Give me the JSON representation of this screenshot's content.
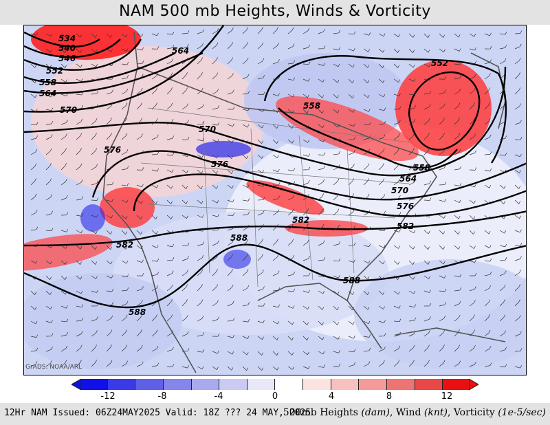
{
  "title": "NAM 500 mb Heights, Winds & Vorticity",
  "credit": "GrADS: NOAA/ARL",
  "colorbar": {
    "ticks": [
      "-12",
      "-8",
      "-4",
      "0",
      "4",
      "8",
      "12"
    ],
    "colors": [
      "#1010e8",
      "#3a3ae8",
      "#5f5fe8",
      "#8585ea",
      "#a9a9ee",
      "#cacaf3",
      "#e8e8fa",
      "#ffffff",
      "#fde2e2",
      "#f9c0c0",
      "#f49a9a",
      "#ee7373",
      "#e84848",
      "#e81010"
    ]
  },
  "footer": {
    "left": "12Hr NAM Issued: 06Z24MAY2025 Valid: 18Z ??? 24 MAY, 2025",
    "right_prefix": "500mb Heights",
    "right_unit1": "(dam)",
    "right_mid": ", Wind",
    "right_unit2": "(knt)",
    "right_mid2": ", Vorticity",
    "right_unit3": "(1e-5/sec)"
  },
  "contours": {
    "labels": [
      "534",
      "540",
      "546",
      "552",
      "558",
      "564",
      "564",
      "570",
      "570",
      "576",
      "576",
      "582",
      "582",
      "582",
      "588",
      "588",
      "588",
      "552",
      "558",
      "558",
      "564",
      "570",
      "576"
    ]
  }
}
